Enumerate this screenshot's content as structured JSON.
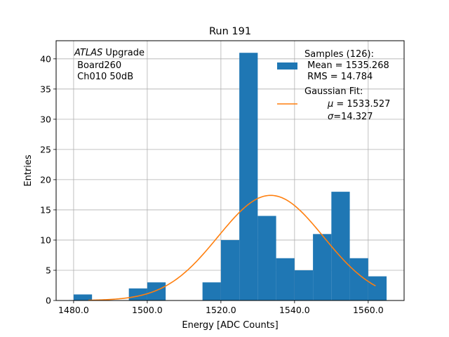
{
  "chart_data": {
    "type": "bar",
    "title": "Run 191",
    "xlabel": "Energy [ADC Counts]",
    "ylabel": "Entries",
    "xlim": [
      1475.25,
      1569.75
    ],
    "ylim": [
      0,
      43
    ],
    "grid": true,
    "x_ticks": [
      1480,
      1500,
      1520,
      1540,
      1560
    ],
    "x_tick_labels": [
      "1480.0",
      "1500.0",
      "1520.0",
      "1540.0",
      "1560.0"
    ],
    "y_ticks": [
      0,
      5,
      10,
      15,
      20,
      25,
      30,
      35,
      40
    ],
    "y_tick_labels": [
      "0",
      "5",
      "10",
      "15",
      "20",
      "25",
      "30",
      "35",
      "40"
    ],
    "bin_width": 5,
    "bins": [
      {
        "x0": 1480,
        "x1": 1485,
        "count": 1
      },
      {
        "x0": 1495,
        "x1": 1500,
        "count": 2
      },
      {
        "x0": 1500,
        "x1": 1505,
        "count": 3
      },
      {
        "x0": 1515,
        "x1": 1520,
        "count": 3
      },
      {
        "x0": 1520,
        "x1": 1525,
        "count": 10
      },
      {
        "x0": 1525,
        "x1": 1530,
        "count": 41
      },
      {
        "x0": 1530,
        "x1": 1535,
        "count": 14
      },
      {
        "x0": 1535,
        "x1": 1540,
        "count": 7
      },
      {
        "x0": 1540,
        "x1": 1545,
        "count": 5
      },
      {
        "x0": 1545,
        "x1": 1550,
        "count": 11
      },
      {
        "x0": 1550,
        "x1": 1555,
        "count": 18
      },
      {
        "x0": 1555,
        "x1": 1560,
        "count": 7
      },
      {
        "x0": 1560,
        "x1": 1565,
        "count": 4
      }
    ],
    "fit": {
      "amplitude": 17.4,
      "mu": 1533.527,
      "sigma": 14.327,
      "x_range": [
        1484,
        1562
      ]
    },
    "colors": {
      "bars": "#1f77b4",
      "fit": "#ff7f0e",
      "grid": "#b0b0b0"
    },
    "legend_placement": "top-right",
    "legend": {
      "samples_label": [
        "Samples (126):",
        " Mean = 1535.268",
        " RMS = 14.784"
      ],
      "fit_label_title": "Gaussian Fit:",
      "fit_mu_symbol": "μ",
      "fit_mu_value": " = 1533.527",
      "fit_sigma_symbol": "σ",
      "fit_sigma_value": "=14.327"
    },
    "annotation": {
      "atlas_italic": "ATLAS",
      "atlas_rest": " Upgrade",
      "line2": " Board260",
      "line3": " Ch010 50dB"
    }
  }
}
